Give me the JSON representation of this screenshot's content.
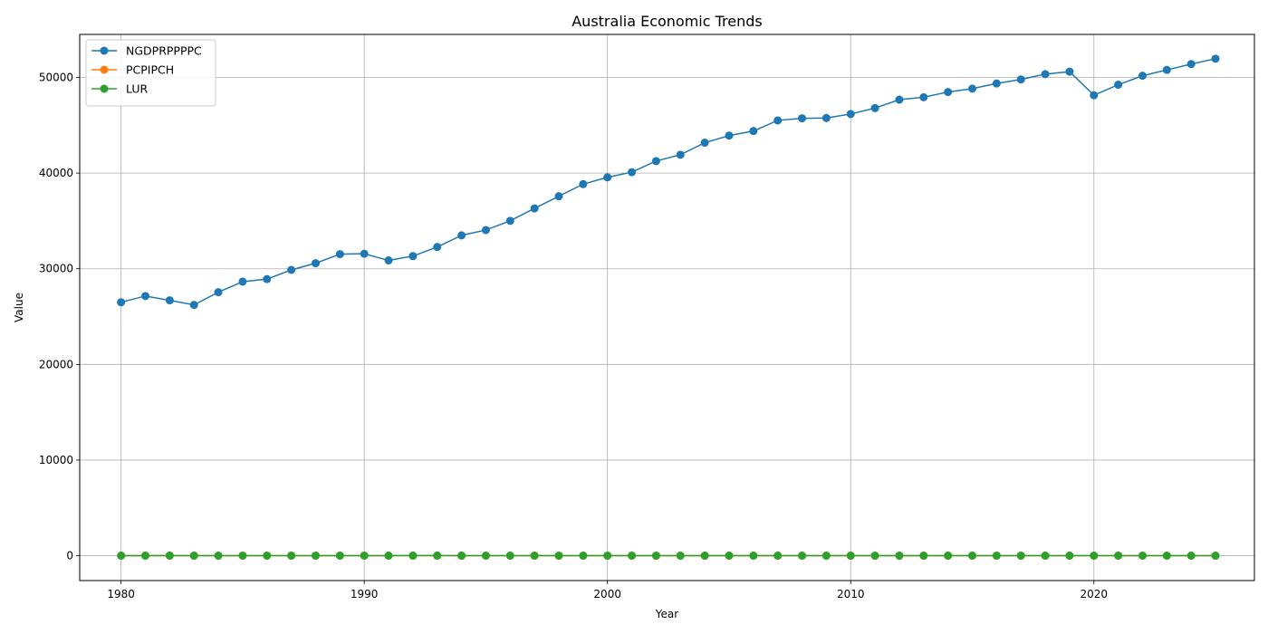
{
  "chart_data": {
    "type": "line",
    "title": "Australia Economic Trends",
    "xlabel": "Year",
    "ylabel": "Value",
    "xlim": [
      1978.3,
      2026.6
    ],
    "ylim": [
      -2600,
      54500
    ],
    "x_ticks": [
      1980,
      1990,
      2000,
      2010,
      2020
    ],
    "y_ticks": [
      0,
      10000,
      20000,
      30000,
      40000,
      50000
    ],
    "grid": true,
    "legend_position": "top-left",
    "x": [
      1980,
      1981,
      1982,
      1983,
      1984,
      1985,
      1986,
      1987,
      1988,
      1989,
      1990,
      1991,
      1992,
      1993,
      1994,
      1995,
      1996,
      1997,
      1998,
      1999,
      2000,
      2001,
      2002,
      2003,
      2004,
      2005,
      2006,
      2007,
      2008,
      2009,
      2010,
      2011,
      2012,
      2013,
      2014,
      2015,
      2016,
      2017,
      2018,
      2019,
      2020,
      2021,
      2022,
      2023,
      2024,
      2025
    ],
    "series": [
      {
        "name": "NGDPRPPPPC",
        "color": "#1f77b4",
        "values": [
          26500,
          27150,
          26700,
          26220,
          27550,
          28650,
          28920,
          29880,
          30580,
          31530,
          31570,
          30870,
          31320,
          32280,
          33490,
          34050,
          35010,
          36310,
          37580,
          38850,
          39560,
          40100,
          41260,
          41920,
          43180,
          43920,
          44400,
          45510,
          45730,
          45760,
          46180,
          46800,
          47680,
          47930,
          48480,
          48830,
          49370,
          49790,
          50350,
          50610,
          48140,
          49240,
          50180,
          50790,
          51400,
          51960
        ]
      },
      {
        "name": "PCPIPCH",
        "color": "#ff7f0e",
        "values": [
          10.2,
          9.6,
          11.1,
          10.1,
          4.0,
          6.7,
          9.1,
          8.5,
          7.2,
          7.5,
          7.3,
          3.2,
          1.0,
          1.8,
          1.9,
          4.6,
          2.6,
          0.3,
          0.9,
          1.5,
          4.5,
          4.4,
          3.0,
          2.8,
          2.3,
          2.7,
          3.5,
          2.3,
          4.4,
          1.8,
          2.9,
          3.3,
          1.8,
          2.5,
          2.5,
          1.5,
          1.3,
          2.0,
          1.9,
          1.6,
          0.9,
          2.8,
          6.6,
          5.6,
          3.3,
          2.8
        ]
      },
      {
        "name": "LUR",
        "color": "#2ca02c",
        "values": [
          6.1,
          5.8,
          7.2,
          10.0,
          9.0,
          8.3,
          8.1,
          8.1,
          7.2,
          6.2,
          6.9,
          9.6,
          10.8,
          10.9,
          9.7,
          8.5,
          8.5,
          8.4,
          7.7,
          6.9,
          6.3,
          6.8,
          6.4,
          5.9,
          5.4,
          5.0,
          4.8,
          4.4,
          4.2,
          5.6,
          5.2,
          5.1,
          5.2,
          5.7,
          6.1,
          6.1,
          5.7,
          5.6,
          5.3,
          5.2,
          6.5,
          5.1,
          3.7,
          3.7,
          4.0,
          4.2
        ]
      }
    ]
  }
}
